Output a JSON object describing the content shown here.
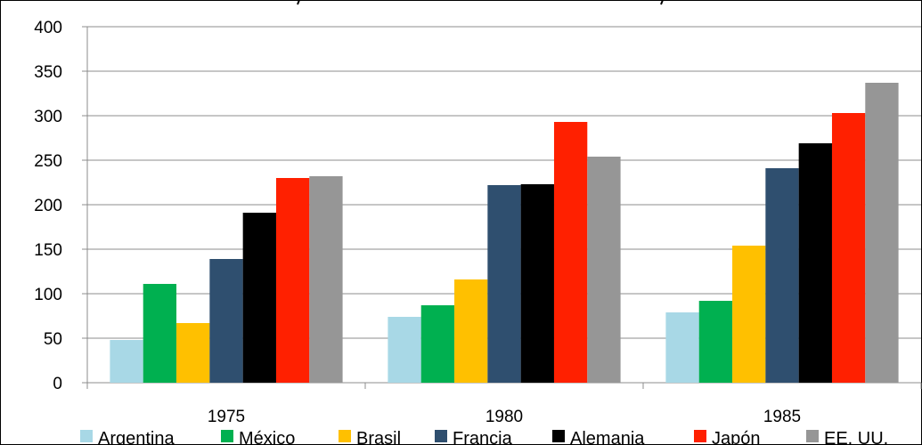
{
  "chart_data": {
    "type": "bar",
    "categories": [
      "1975",
      "1980",
      "1985"
    ],
    "series": [
      {
        "name": "Argentina",
        "color": "#a8d8e6",
        "values": [
          48,
          74,
          79
        ]
      },
      {
        "name": "México",
        "color": "#00b050",
        "values": [
          111,
          87,
          92
        ]
      },
      {
        "name": "Brasil",
        "color": "#ffc000",
        "values": [
          67,
          116,
          154
        ]
      },
      {
        "name": "Francia",
        "color": "#2f4f6f",
        "values": [
          139,
          222,
          241
        ]
      },
      {
        "name": "Alemania",
        "color": "#000000",
        "values": [
          191,
          223,
          269
        ]
      },
      {
        "name": "Japón",
        "color": "#ff2000",
        "values": [
          230,
          293,
          303
        ]
      },
      {
        "name": "EE. UU.",
        "color": "#969696",
        "values": [
          232,
          254,
          337
        ]
      }
    ],
    "yticks": [
      "0",
      "50",
      "100",
      "150",
      "200",
      "250",
      "300",
      "350",
      "400"
    ],
    "ylim": [
      0,
      400
    ],
    "grid": true,
    "legend_position": "bottom"
  }
}
